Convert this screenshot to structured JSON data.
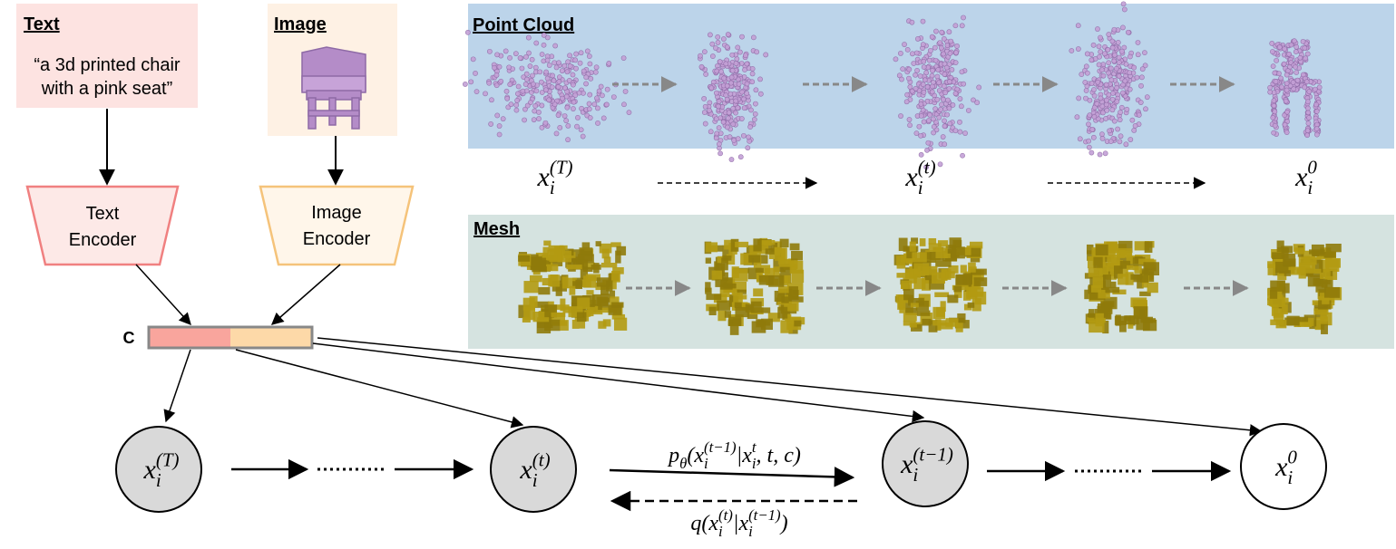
{
  "text_input": {
    "title": "Text",
    "lines": [
      "“a 3d printed chair",
      "with a pink seat”"
    ]
  },
  "image_input": {
    "title": "Image"
  },
  "encoders": [
    {
      "lines": [
        "Text",
        "Encoder"
      ]
    },
    {
      "lines": [
        "Image",
        "Encoder"
      ]
    }
  ],
  "condition": {
    "label": "C"
  },
  "point_cloud": {
    "title": "Point Cloud"
  },
  "mesh": {
    "title": "Mesh"
  },
  "step_labels": [
    {
      "base": "x",
      "sub": "i",
      "sup": "(T)"
    },
    {
      "base": "x",
      "sub": "i",
      "sup": "(t)"
    },
    {
      "base": "x",
      "sub": "i",
      "sup": "0"
    }
  ],
  "nodes": [
    {
      "base": "x",
      "sub": "i",
      "sup": "(T)"
    },
    {
      "base": "x",
      "sub": "i",
      "sup": "(t)"
    },
    {
      "base": "x",
      "sub": "i",
      "sup": "(t−1)"
    },
    {
      "base": "x",
      "sub": "i",
      "sup": "0"
    }
  ],
  "reverse_process": [
    {
      "base": "p",
      "sub": "θ"
    },
    {
      "base": "(x",
      "sub": "i",
      "sup": "(t−1)"
    },
    {
      "base": "|x",
      "sub": "i",
      "sup": "t"
    },
    {
      "base": ", t, c)"
    }
  ],
  "forward_process": [
    {
      "base": "q(x",
      "sub": "i",
      "sup": "(t)"
    },
    {
      "base": "|x",
      "sub": "i",
      "sup": "(t−1)"
    },
    {
      "base": ")"
    }
  ]
}
